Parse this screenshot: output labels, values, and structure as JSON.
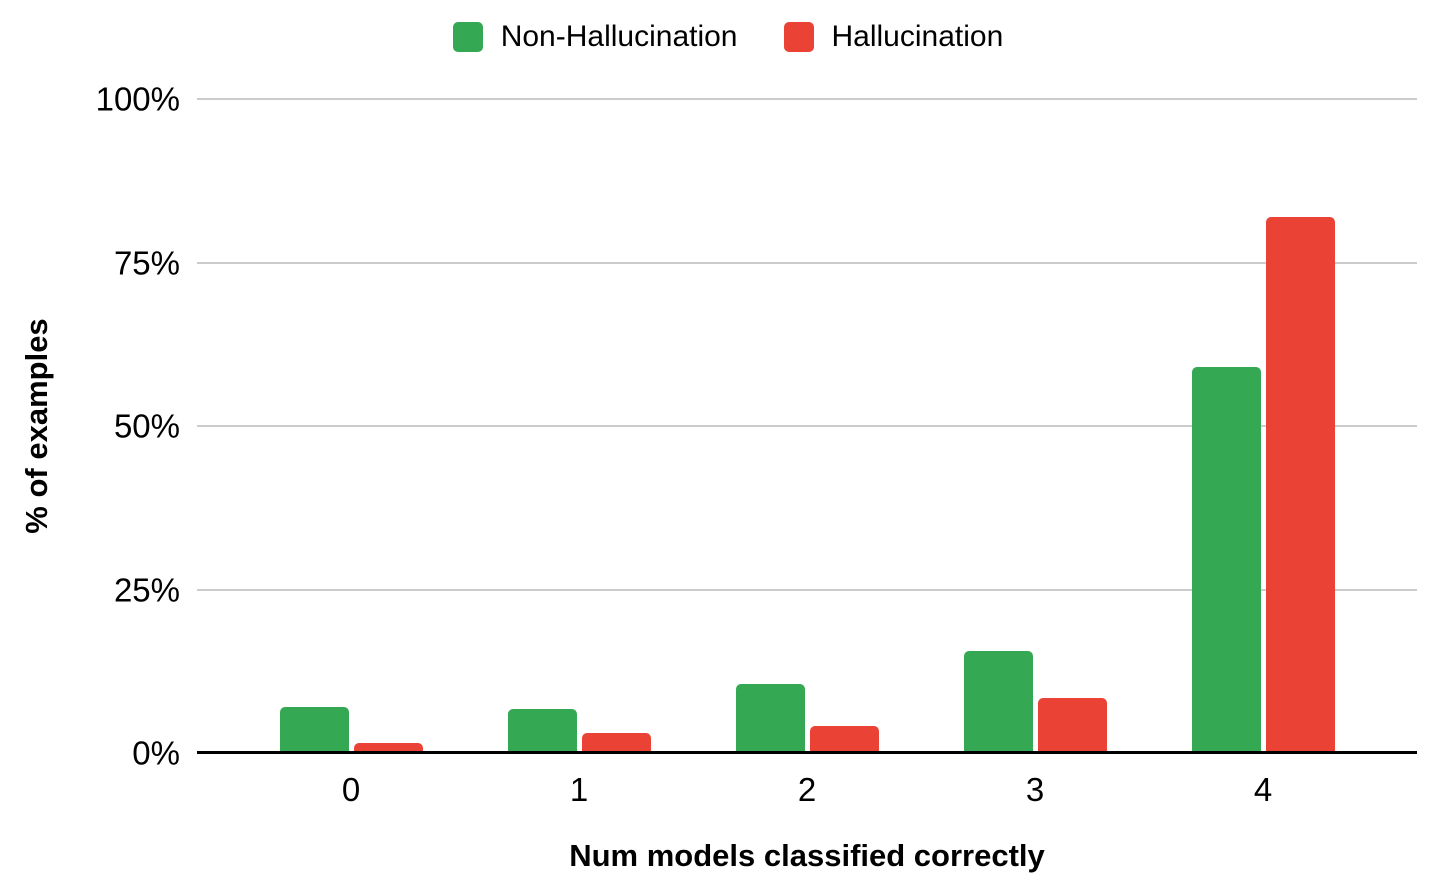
{
  "chart_data": {
    "type": "bar",
    "title": "",
    "categories": [
      "0",
      "1",
      "2",
      "3",
      "4"
    ],
    "series": [
      {
        "name": "Non-Hallucination",
        "color": "#34A853",
        "values": [
          7.1,
          6.8,
          10.5,
          15.6,
          59
        ]
      },
      {
        "name": "Hallucination",
        "color": "#EA4335",
        "values": [
          1.5,
          3,
          4.2,
          8.4,
          82
        ]
      }
    ],
    "xlabel": "Num models classified correctly",
    "ylabel": "% of examples",
    "ylim": [
      0,
      100
    ],
    "y_ticks": [
      {
        "label": "0%",
        "value": 0
      },
      {
        "label": "25%",
        "value": 25
      },
      {
        "label": "50%",
        "value": 50
      },
      {
        "label": "75%",
        "value": 75
      },
      {
        "label": "100%",
        "value": 100
      }
    ],
    "grid": true,
    "legend_position": "top"
  },
  "colors": {
    "gridline": "#cccccc",
    "axis_line": "#000000",
    "background": "#ffffff",
    "text": "#000000"
  }
}
